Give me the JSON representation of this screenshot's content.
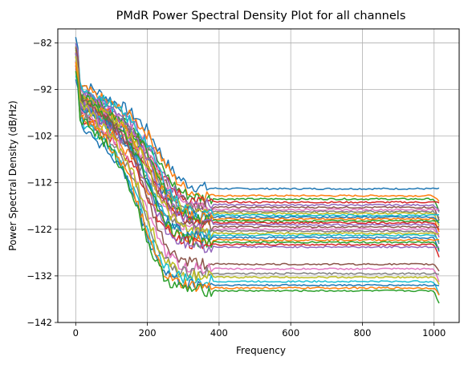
{
  "chart_data": {
    "type": "line",
    "title": "PMdR Power Spectral Density Plot for all channels",
    "xlabel": "Frequency",
    "ylabel": "Power Spectral Density (dB/Hz)",
    "xlim": [
      -50,
      1070
    ],
    "ylim": [
      -142,
      -79
    ],
    "x_ticks": [
      0,
      200,
      400,
      600,
      800,
      1000
    ],
    "x_tick_labels": [
      "0",
      "200",
      "400",
      "600",
      "800",
      "1000"
    ],
    "y_ticks": [
      -82,
      -92,
      -102,
      -112,
      -122,
      -132,
      -142
    ],
    "y_tick_labels": [
      "−82",
      "−92",
      "−102",
      "−112",
      "−122",
      "−132",
      "−142"
    ],
    "grid": true,
    "legend": "none",
    "x_range": [
      0,
      1015
    ],
    "colors": [
      "#1f77b4",
      "#ff7f0e",
      "#2ca02c",
      "#d62728",
      "#9467bd",
      "#8c564b",
      "#e377c2",
      "#7f7f7f",
      "#bcbd22",
      "#17becf"
    ],
    "series": [
      {
        "start": -84.0,
        "knee": 245,
        "floor": -113.3
      },
      {
        "start": -85.0,
        "knee": 250,
        "floor": -114.8
      },
      {
        "start": -86.0,
        "knee": 240,
        "floor": -115.5
      },
      {
        "start": -87.0,
        "knee": 235,
        "floor": -116.2
      },
      {
        "start": -85.5,
        "knee": 242,
        "floor": -116.8
      },
      {
        "start": -88.0,
        "knee": 238,
        "floor": -117.3
      },
      {
        "start": -86.5,
        "knee": 236,
        "floor": -117.8
      },
      {
        "start": -87.5,
        "knee": 232,
        "floor": -118.2
      },
      {
        "start": -89.0,
        "knee": 234,
        "floor": -118.6
      },
      {
        "start": -84.5,
        "knee": 240,
        "floor": -119.0
      },
      {
        "start": -88.5,
        "knee": 232,
        "floor": -119.4
      },
      {
        "start": -87.0,
        "knee": 230,
        "floor": -119.8
      },
      {
        "start": -86.0,
        "knee": 236,
        "floor": -120.2
      },
      {
        "start": -89.5,
        "knee": 228,
        "floor": -120.6
      },
      {
        "start": -85.5,
        "knee": 232,
        "floor": -121.0
      },
      {
        "start": -88.0,
        "knee": 226,
        "floor": -121.5
      },
      {
        "start": -87.5,
        "knee": 224,
        "floor": -122.0
      },
      {
        "start": -90.0,
        "knee": 222,
        "floor": -122.4
      },
      {
        "start": -86.5,
        "knee": 228,
        "floor": -122.9
      },
      {
        "start": -89.0,
        "knee": 220,
        "floor": -123.3
      },
      {
        "start": -88.5,
        "knee": 218,
        "floor": -123.8
      },
      {
        "start": -90.5,
        "knee": 216,
        "floor": -124.3
      },
      {
        "start": -87.0,
        "knee": 218,
        "floor": -124.8
      },
      {
        "start": -91.0,
        "knee": 212,
        "floor": -125.3
      },
      {
        "start": -88.0,
        "knee": 215,
        "floor": -125.8
      },
      {
        "start": -86.0,
        "knee": 210,
        "floor": -129.5
      },
      {
        "start": -89.0,
        "knee": 205,
        "floor": -130.5
      },
      {
        "start": -90.0,
        "knee": 202,
        "floor": -131.5
      },
      {
        "start": -88.5,
        "knee": 205,
        "floor": -132.3
      },
      {
        "start": -91.5,
        "knee": 200,
        "floor": -133.2
      },
      {
        "start": -92.5,
        "knee": 198,
        "floor": -134.0
      },
      {
        "start": -90.0,
        "knee": 196,
        "floor": -134.6
      },
      {
        "start": -91.0,
        "knee": 195,
        "floor": -135.2
      }
    ]
  }
}
